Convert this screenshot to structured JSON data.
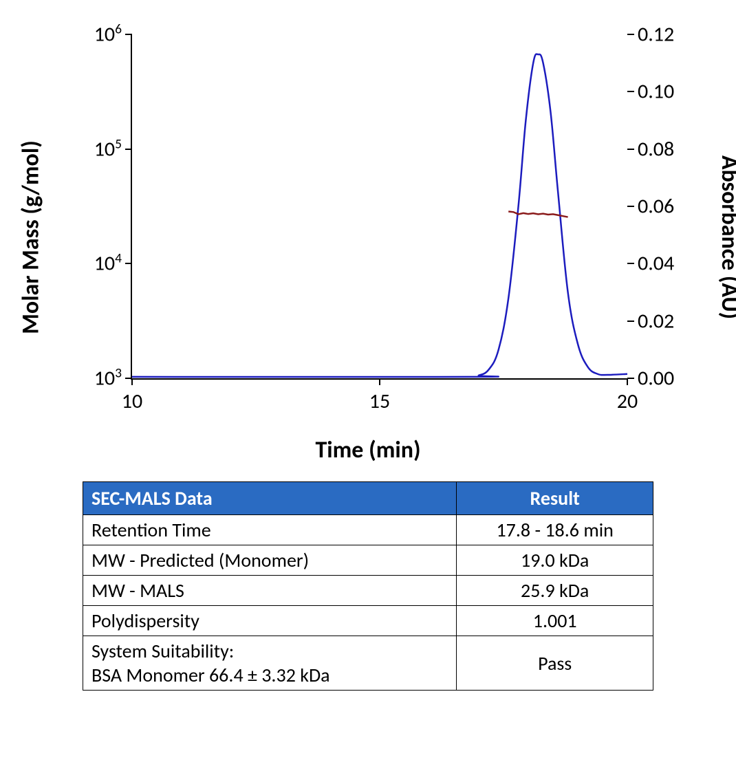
{
  "chart": {
    "type": "line-dual-axis",
    "background": "#ffffff",
    "x": {
      "label": "Time (min)",
      "min": 10,
      "max": 20,
      "ticks": [
        10,
        15,
        20
      ],
      "tick_labels": [
        "10",
        "15",
        "20"
      ]
    },
    "y_left": {
      "label": "Molar Mass (g/mol)",
      "scale": "log",
      "min_exp": 3,
      "max_exp": 6,
      "ticks_exp": [
        3,
        4,
        5,
        6
      ],
      "tick_labels": [
        "10³",
        "10⁴",
        "10⁵",
        "10⁶"
      ]
    },
    "y_right": {
      "label": "Absorbance (AU)",
      "scale": "linear",
      "min": 0,
      "max": 0.12,
      "ticks": [
        0.0,
        0.02,
        0.04,
        0.06,
        0.08,
        0.1,
        0.12
      ],
      "tick_labels": [
        "0.00",
        "0.02",
        "0.04",
        "0.06",
        "0.08",
        "0.10",
        "0.12"
      ]
    },
    "absorbance_trace": {
      "color": "#1c1cbe",
      "width": 2.5,
      "points": [
        [
          10.0,
          0.0005
        ],
        [
          16.8,
          0.0005
        ],
        [
          17.0,
          0.001
        ],
        [
          17.2,
          0.003
        ],
        [
          17.4,
          0.01
        ],
        [
          17.6,
          0.028
        ],
        [
          17.8,
          0.06
        ],
        [
          17.95,
          0.09
        ],
        [
          18.1,
          0.11
        ],
        [
          18.2,
          0.113
        ],
        [
          18.3,
          0.11
        ],
        [
          18.45,
          0.093
        ],
        [
          18.6,
          0.065
        ],
        [
          18.8,
          0.03
        ],
        [
          19.0,
          0.012
        ],
        [
          19.2,
          0.004
        ],
        [
          19.4,
          0.0015
        ],
        [
          19.6,
          0.0012
        ],
        [
          20.0,
          0.0015
        ]
      ]
    },
    "molar_mass_trace": {
      "color": "#8a1a1a",
      "width": 2.5,
      "points": [
        [
          17.6,
          28500
        ],
        [
          17.7,
          28200
        ],
        [
          17.8,
          27000
        ],
        [
          17.9,
          27600
        ],
        [
          18.0,
          27100
        ],
        [
          18.1,
          27500
        ],
        [
          18.2,
          27000
        ],
        [
          18.3,
          27300
        ],
        [
          18.4,
          26800
        ],
        [
          18.5,
          27000
        ],
        [
          18.6,
          26500
        ],
        [
          18.7,
          26000
        ],
        [
          18.8,
          25500
        ]
      ]
    },
    "axis_label_fontsize": 34,
    "tick_fontsize": 30,
    "axis_color": "#000000"
  },
  "table": {
    "header_bg": "#2a6bc2",
    "header_fg": "#ffffff",
    "columns": [
      "SEC-MALS Data",
      "Result"
    ],
    "rows": [
      {
        "label": "Retention Time",
        "result": "17.8 - 18.6 min"
      },
      {
        "label": "MW - Predicted (Monomer)",
        "result": "19.0 kDa"
      },
      {
        "label": "MW - MALS",
        "result": "25.9 kDa"
      },
      {
        "label": "Polydispersity",
        "result": "1.001"
      },
      {
        "label": "System Suitability:\nBSA Monomer 66.4 ± 3.32 kDa",
        "result": "Pass"
      }
    ]
  }
}
